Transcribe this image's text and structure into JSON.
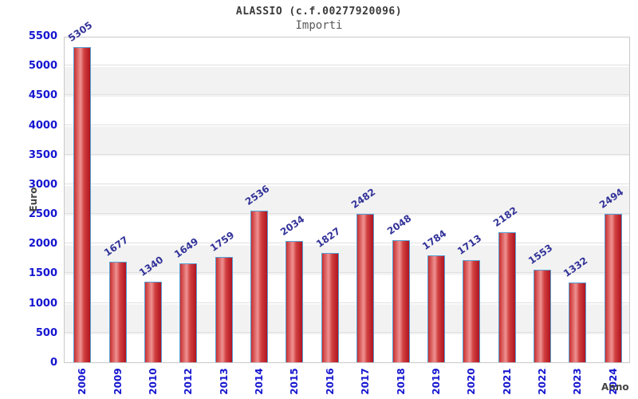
{
  "title": "ALASSIO (c.f.00277920096)",
  "subtitle": "Importi",
  "chart_data": {
    "type": "bar",
    "categories": [
      "2006",
      "2009",
      "2010",
      "2012",
      "2013",
      "2014",
      "2015",
      "2016",
      "2017",
      "2018",
      "2019",
      "2020",
      "2021",
      "2022",
      "2023",
      "2024"
    ],
    "values": [
      5305,
      1677,
      1340,
      1649,
      1759,
      2536,
      2034,
      1827,
      2482,
      2048,
      1784,
      1713,
      2182,
      1553,
      1332,
      2494
    ],
    "title": "ALASSIO (c.f.00277920096)",
    "subtitle": "Importi",
    "xlabel": "Anno",
    "ylabel": "Euro",
    "ylim": [
      0,
      5500
    ],
    "ytick_step": 500,
    "grid": true,
    "legend_position": "none",
    "band_colors": [
      "#ffffff",
      "#f2f2f2"
    ]
  },
  "colors": {
    "axis_tick_label": "#1515d0",
    "value_label": "#333399",
    "bar_border": "#56a0d3",
    "bar_fill_edge": "#c93030",
    "bar_fill_light": "#ef9292",
    "bar_fill_dark": "#b01420",
    "gridline": "#e0e0e0",
    "plot_border": "#c9c9c9",
    "title_color": "#3a3a3a",
    "subtitle_color": "#5a5a5a",
    "axis_title_color": "#444444"
  }
}
